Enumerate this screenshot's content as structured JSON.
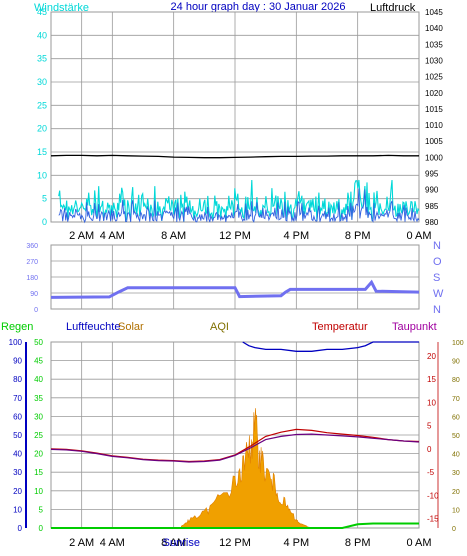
{
  "header": {
    "left_label": "Windstärke",
    "center_title": "24 hour graph day : 30 Januar 2026",
    "right_label": "Luftdruck"
  },
  "colors": {
    "wind": "#00d8d8",
    "gust": "#40c8e8",
    "pressure": "#000000",
    "direction": "#7070f0",
    "humidity": "#0000c0",
    "temperature": "#c00000",
    "dewpoint": "#6a0080",
    "solar": "#f0a000",
    "rain": "#00cc00",
    "aqi": "#807000",
    "grid": "#9a9a9a"
  },
  "chart_data": [
    {
      "type": "line",
      "name": "wind-pressure",
      "x_hours": [
        0,
        24
      ],
      "xticks": [
        {
          "h": 2,
          "label": "2 AM"
        },
        {
          "h": 4,
          "label": "4 AM"
        },
        {
          "h": 8,
          "label": "8 AM"
        },
        {
          "h": 12,
          "label": "12 PM"
        },
        {
          "h": 16,
          "label": "4 PM"
        },
        {
          "h": 20,
          "label": "8 PM"
        },
        {
          "h": 24,
          "label": "0 AM"
        }
      ],
      "y_left": {
        "label": "Windstärke",
        "ylim": [
          0,
          45
        ],
        "ticks": [
          0,
          5,
          10,
          15,
          20,
          25,
          30,
          35,
          40,
          45
        ]
      },
      "y_right": {
        "label": "Luftdruck",
        "ylim": [
          980,
          1045
        ],
        "ticks": [
          980,
          985,
          990,
          995,
          1000,
          1005,
          1010,
          1015,
          1020,
          1025,
          1030,
          1035,
          1040,
          1045
        ]
      },
      "series": [
        {
          "name": "Luftdruck",
          "axis": "right",
          "x": [
            0,
            1,
            2,
            3,
            4,
            5,
            6,
            7,
            8,
            9,
            10,
            11,
            12,
            13,
            14,
            15,
            16,
            17,
            18,
            19,
            20,
            21,
            22,
            23,
            24
          ],
          "values": [
            1000.5,
            1000.6,
            1000.6,
            1000.5,
            1000.6,
            1000.5,
            1000.4,
            1000.3,
            1000.1,
            1000.0,
            999.9,
            999.9,
            1000.0,
            1000.1,
            1000.2,
            1000.3,
            1000.3,
            1000.4,
            1000.4,
            1000.5,
            1000.5,
            1000.5,
            1000.6,
            1000.5,
            1000.5
          ]
        }
      ]
    },
    {
      "type": "line",
      "name": "wind-direction",
      "yticks": [
        0,
        90,
        180,
        270,
        360
      ],
      "direction_labels": [
        "N",
        "W",
        "S",
        "O",
        "N"
      ],
      "series": [
        {
          "name": "Windrichtung",
          "x": [
            0,
            3.8,
            4.4,
            5.0,
            12.0,
            12.3,
            15.0,
            15.3,
            15.6,
            16.0,
            20.5,
            20.9,
            21.2,
            24
          ],
          "values": [
            65,
            68,
            95,
            120,
            120,
            70,
            75,
            95,
            110,
            110,
            110,
            150,
            100,
            95
          ]
        }
      ]
    },
    {
      "type": "line",
      "name": "climate",
      "legend": [
        "Regen",
        "Luftfeuchte",
        "Solar",
        "AQI",
        "Temperatur",
        "Taupunkt"
      ],
      "y_humidity": {
        "ylim": [
          0,
          100
        ],
        "ticks": [
          0,
          10,
          20,
          30,
          40,
          50,
          60,
          70,
          80,
          90,
          100
        ]
      },
      "y_rain": {
        "ylim": [
          0,
          50
        ],
        "ticks": [
          0,
          5,
          10,
          15,
          20,
          25,
          30,
          35,
          40,
          45,
          50
        ]
      },
      "y_temperature": {
        "ylim": [
          -17,
          23
        ],
        "ticks": [
          -15,
          -10,
          -5,
          0,
          5,
          10,
          15,
          20
        ]
      },
      "y_aqi": {
        "ylim": [
          0,
          100
        ],
        "ticks": [
          0,
          10,
          20,
          30,
          40,
          50,
          60,
          70,
          80,
          90,
          100
        ]
      },
      "xticks_extra": {
        "h": 8.5,
        "label": "Sunrise"
      },
      "series": [
        {
          "name": "Temperatur",
          "x": [
            0,
            1,
            2,
            3,
            4,
            5,
            6,
            7,
            8,
            9,
            10,
            11,
            12,
            13,
            14,
            15,
            16,
            17,
            18,
            19,
            20,
            21,
            22,
            23,
            24
          ],
          "values": [
            0,
            -0.1,
            -0.4,
            -0.9,
            -1.5,
            -1.8,
            -2.2,
            -2.4,
            -2.5,
            -2.7,
            -2.6,
            -2.3,
            -1.3,
            0.6,
            2.7,
            3.6,
            4.2,
            4.0,
            3.5,
            3.2,
            2.9,
            2.5,
            2.0,
            1.7,
            1.6
          ]
        },
        {
          "name": "Taupunkt",
          "x": [
            0,
            1,
            2,
            3,
            4,
            5,
            6,
            7,
            8,
            9,
            10,
            11,
            12,
            13,
            14,
            15,
            16,
            17,
            18,
            19,
            20,
            21,
            22,
            23,
            24
          ],
          "values": [
            -0.1,
            -0.2,
            -0.5,
            -1.0,
            -1.6,
            -1.9,
            -2.3,
            -2.5,
            -2.6,
            -2.8,
            -2.7,
            -2.4,
            -1.4,
            0.2,
            2.0,
            2.7,
            3.1,
            3.2,
            3.0,
            2.8,
            2.6,
            2.3,
            2.0,
            1.7,
            1.5
          ]
        },
        {
          "name": "Luftfeuchte",
          "x": [
            12.5,
            12.9,
            13.3,
            14,
            15,
            16,
            17,
            18,
            19,
            20,
            20.5,
            21,
            24
          ],
          "values": [
            100,
            98,
            97,
            96,
            96,
            95,
            95,
            96,
            96,
            97,
            98,
            100,
            100
          ]
        },
        {
          "name": "Solar",
          "x": [
            8.5,
            9,
            10,
            11,
            12,
            12.5,
            13,
            13.3,
            13.6,
            14,
            14.5,
            15,
            15.5,
            16,
            16.3,
            17
          ],
          "values": [
            0.5,
            2,
            4,
            8,
            12,
            16,
            22,
            27,
            20,
            15,
            12,
            8,
            5,
            2,
            1,
            0
          ]
        },
        {
          "name": "Regen",
          "x": [
            0,
            19,
            20,
            21,
            24
          ],
          "values": [
            0,
            0,
            1,
            1.2,
            1.2
          ]
        }
      ]
    }
  ]
}
